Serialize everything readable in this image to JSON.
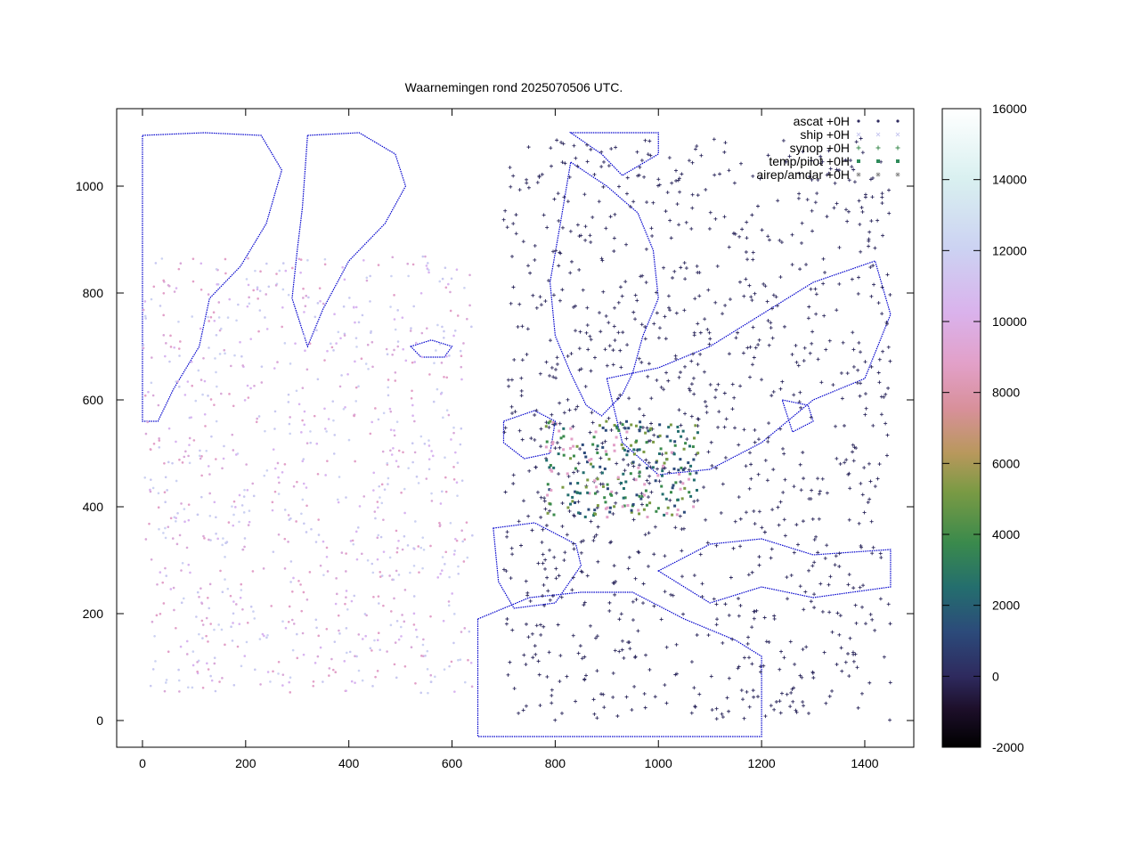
{
  "chart_data": {
    "type": "scatter",
    "title": "Waarnemingen rond 2025070506 UTC.",
    "xlabel": "",
    "ylabel": "",
    "xlim": [
      -50,
      1495
    ],
    "ylim": [
      -50,
      1145
    ],
    "xticks": [
      "0",
      "200",
      "400",
      "600",
      "800",
      "1000",
      "1200",
      "1400"
    ],
    "yticks": [
      "0",
      "200",
      "400",
      "600",
      "800",
      "1000"
    ],
    "legend_position": "top-right",
    "grid": false,
    "series": [
      {
        "name": "ascat +0H",
        "marker": "dot"
      },
      {
        "name": "ship +0H",
        "marker": "x"
      },
      {
        "name": "synop +0H",
        "marker": "plus"
      },
      {
        "name": "temp/pilot +0H",
        "marker": "square"
      },
      {
        "name": "airep/amdar +0H",
        "marker": "star"
      }
    ],
    "colorbar": {
      "range": [
        -2000,
        16000
      ],
      "ticks": [
        "-2000",
        "0",
        "2000",
        "4000",
        "6000",
        "8000",
        "10000",
        "12000",
        "14000",
        "16000"
      ]
    },
    "coastline_color": "#0000cc"
  }
}
